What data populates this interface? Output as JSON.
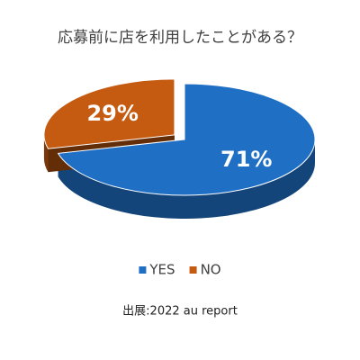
{
  "chart_data": {
    "type": "pie",
    "title": "応募前に店を利用したことがある？",
    "categories": [
      "YES",
      "NO"
    ],
    "values": [
      71,
      29
    ],
    "value_labels": [
      "71%",
      "29%"
    ],
    "colors": [
      "#1f6fc5",
      "#c55a11"
    ],
    "source": "出展:2022 au report"
  }
}
